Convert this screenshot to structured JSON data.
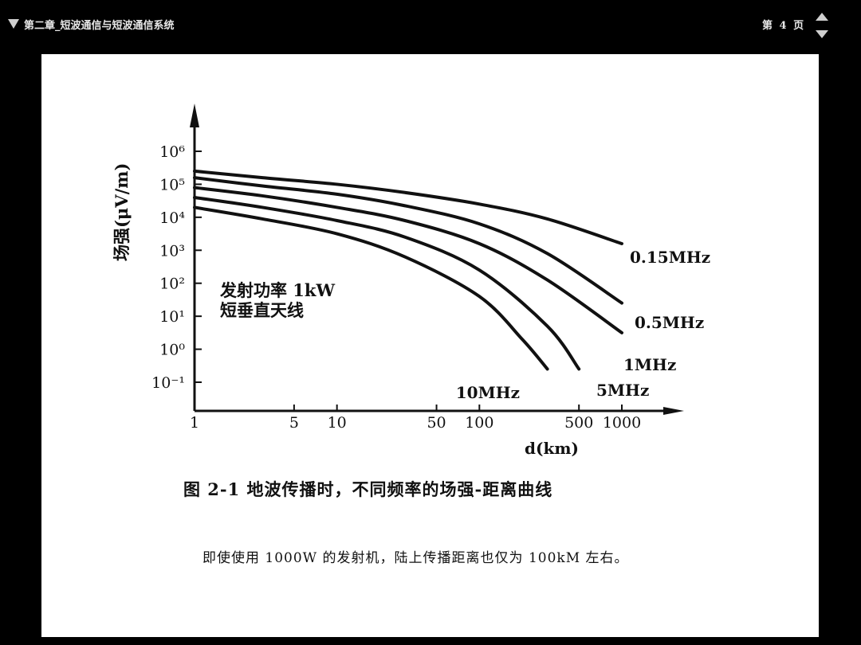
{
  "toolbar": {
    "title": "第二章_短波通信与短波通信系统",
    "page_indicator": "第 4 页",
    "menu_icon": "triangle-down",
    "prev_icon": "triangle-up",
    "next_icon": "triangle-down"
  },
  "slide": {
    "caption": "图 2-1   地波传播时，不同频率的场强-距离曲线",
    "body_text": "即使使用 1000W 的发射机，陆上传播距离也仅为 100kM 左右。"
  },
  "chart_data": {
    "type": "line",
    "x_scale": "log",
    "y_scale": "log",
    "ylabel": "场强(μV/m)",
    "xlabel": "d(km)",
    "x_ticks": [
      1,
      5,
      10,
      50,
      100,
      500,
      1000
    ],
    "x_tick_labels": [
      "1",
      "5",
      "10",
      "50",
      "100",
      "500",
      "1000"
    ],
    "y_ticks": [
      -1,
      0,
      1,
      2,
      3,
      4,
      5,
      6
    ],
    "y_tick_labels": [
      "10⁻¹",
      "10⁰",
      "10¹",
      "10²",
      "10³",
      "10⁴",
      "10⁵",
      "10⁶"
    ],
    "annotation": [
      "发射功率 1kW",
      "短垂直天线"
    ],
    "series": [
      {
        "name": "0.15MHz",
        "x": [
          1,
          3,
          10,
          30,
          100,
          300,
          1000
        ],
        "y": [
          5.4,
          5.2,
          5.0,
          4.75,
          4.4,
          3.95,
          3.2
        ]
      },
      {
        "name": "0.5MHz",
        "x": [
          1,
          3,
          10,
          30,
          100,
          300,
          1000
        ],
        "y": [
          5.2,
          4.95,
          4.7,
          4.35,
          3.8,
          2.9,
          1.4
        ]
      },
      {
        "name": "1MHz",
        "x": [
          1,
          3,
          10,
          30,
          100,
          300,
          1000
        ],
        "y": [
          4.9,
          4.65,
          4.3,
          3.9,
          3.2,
          2.1,
          0.5
        ]
      },
      {
        "name": "5MHz",
        "x": [
          1,
          3,
          10,
          30,
          100,
          300,
          500
        ],
        "y": [
          4.6,
          4.3,
          3.9,
          3.4,
          2.4,
          0.7,
          -0.6
        ]
      },
      {
        "name": "10MHz",
        "x": [
          1,
          3,
          10,
          30,
          100,
          200,
          300
        ],
        "y": [
          4.3,
          3.95,
          3.5,
          2.8,
          1.6,
          0.3,
          -0.6
        ]
      }
    ],
    "series_label_text": [
      "0.15MHz",
      "0.5MHz",
      "1MHz",
      "5MHz",
      "10MHz"
    ]
  }
}
